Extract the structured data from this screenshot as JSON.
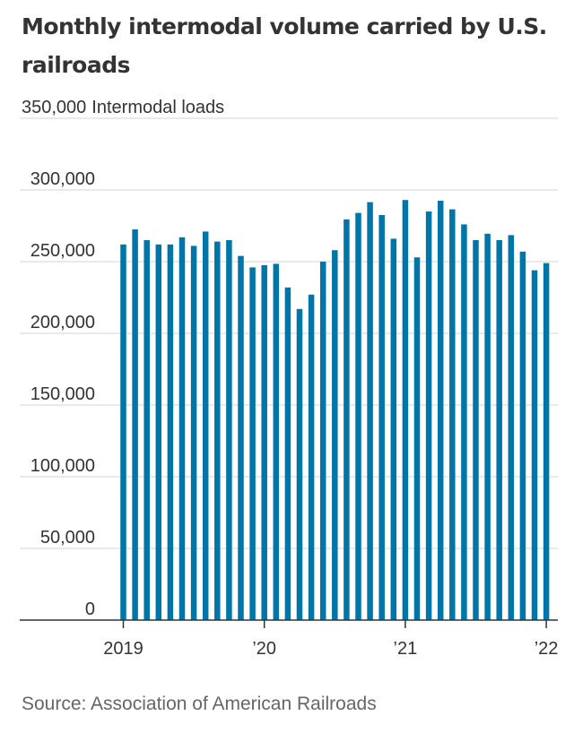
{
  "chart_data": {
    "type": "bar",
    "title": "Monthly intermodal volume carried by U.S. railroads",
    "ylabel": "Intermodal loads",
    "xlabel": "",
    "ylim": [
      0,
      350000
    ],
    "yticks": [
      {
        "value": 0,
        "label": "0"
      },
      {
        "value": 50000,
        "label": "50,000"
      },
      {
        "value": 100000,
        "label": "100,000"
      },
      {
        "value": 150000,
        "label": "150,000"
      },
      {
        "value": 200000,
        "label": "200,000"
      },
      {
        "value": 250000,
        "label": "250,000"
      },
      {
        "value": 300000,
        "label": "300,000"
      },
      {
        "value": 350000,
        "label": "350,000"
      }
    ],
    "xticks": [
      {
        "index": 0,
        "label": "2019"
      },
      {
        "index": 12,
        "label": "’20"
      },
      {
        "index": 24,
        "label": "’21"
      },
      {
        "index": 36,
        "label": "’22"
      }
    ],
    "categories": [
      "2019-01",
      "2019-02",
      "2019-03",
      "2019-04",
      "2019-05",
      "2019-06",
      "2019-07",
      "2019-08",
      "2019-09",
      "2019-10",
      "2019-11",
      "2019-12",
      "2020-01",
      "2020-02",
      "2020-03",
      "2020-04",
      "2020-05",
      "2020-06",
      "2020-07",
      "2020-08",
      "2020-09",
      "2020-10",
      "2020-11",
      "2020-12",
      "2021-01",
      "2021-02",
      "2021-03",
      "2021-04",
      "2021-05",
      "2021-06",
      "2021-07",
      "2021-08",
      "2021-09",
      "2021-10",
      "2021-11",
      "2021-12",
      "2022-01"
    ],
    "series": [
      {
        "name": "Intermodal loads",
        "values": [
          262000,
          272500,
          265000,
          262000,
          262000,
          267000,
          261000,
          271000,
          264000,
          265000,
          254000,
          246000,
          247500,
          248500,
          232000,
          217000,
          227000,
          250000,
          258000,
          279500,
          284000,
          291500,
          282500,
          266000,
          293000,
          253000,
          285000,
          292500,
          286500,
          276000,
          265000,
          269500,
          265000,
          268500,
          257000,
          244000,
          249000
        ]
      }
    ],
    "colors": {
      "bar": "#0075a8",
      "grid": "#dedede",
      "axis": "#333333"
    }
  },
  "source": "Source: Association of American Railroads"
}
